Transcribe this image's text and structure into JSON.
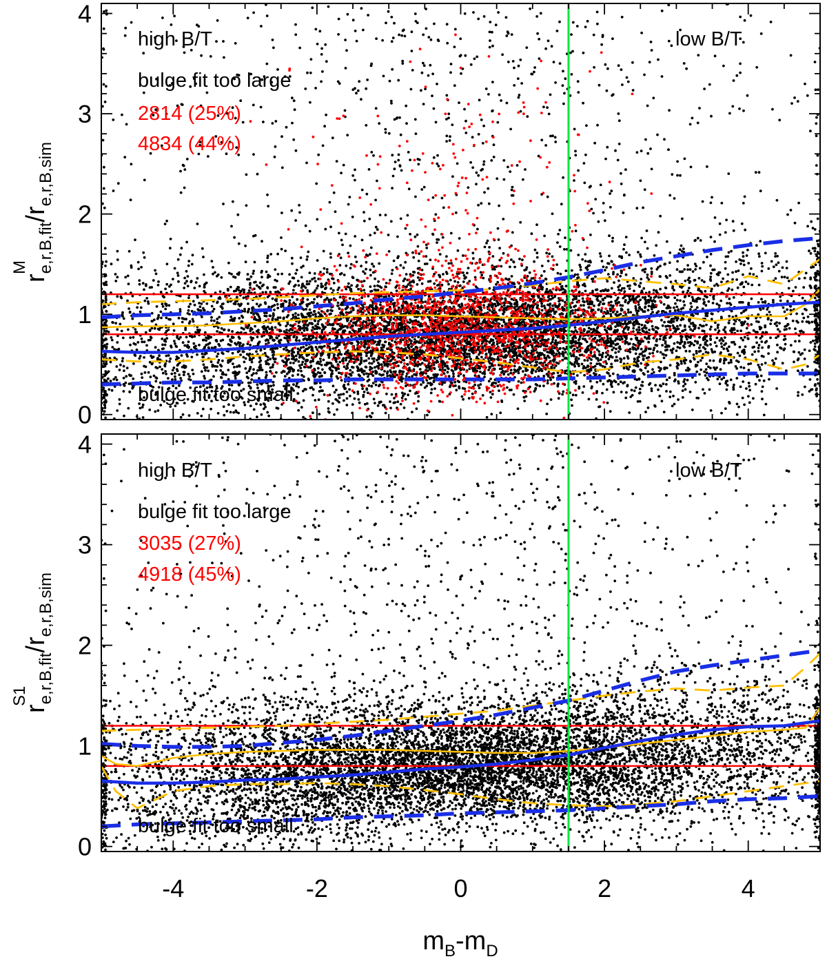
{
  "colors": {
    "points": "#000000",
    "points_flagged": "#ff0000",
    "median": "#1a2ee6",
    "percentile": "#1a2ee6",
    "secondary": "#ffbf00",
    "threshold": "#ff0000",
    "divider": "#00e640",
    "axis": "#000000"
  },
  "chart_data": [
    {
      "type": "scatter",
      "id": "top",
      "ylabel": {
        "base": "r",
        "sup": "M",
        "sub": "e,r,B,fit",
        "sep": "/",
        "base2": "r",
        "sub2": "e,r,B,sim"
      },
      "xlim": [
        -5,
        5
      ],
      "ylim": [
        -0.05,
        4.1
      ],
      "xticks": [
        -4,
        -2,
        0,
        2,
        4
      ],
      "yticks": [
        0,
        1,
        2,
        3,
        4
      ],
      "show_xtick_labels": false,
      "annotations": {
        "left_top": "high B/T",
        "right_top": "low B/T",
        "too_large": "bulge fit too large",
        "count1": "2814 (25%)",
        "count2": "4834 (44%)",
        "too_small": "bulge fit too small"
      },
      "hlines": [
        1.2,
        0.8
      ],
      "vline": 1.5,
      "scatter": {
        "n_black": 9000,
        "n_red": 1600,
        "seed": 11
      },
      "lines": {
        "blue_median": {
          "x": [
            -5,
            -4.5,
            -4,
            -3.5,
            -3,
            -2.5,
            -2,
            -1.5,
            -1,
            -0.5,
            0,
            0.5,
            1,
            1.5,
            2,
            2.5,
            3,
            3.5,
            4,
            4.5,
            5
          ],
          "y": [
            0.63,
            0.62,
            0.62,
            0.64,
            0.66,
            0.69,
            0.72,
            0.75,
            0.78,
            0.8,
            0.82,
            0.84,
            0.86,
            0.89,
            0.93,
            0.97,
            1.01,
            1.04,
            1.07,
            1.1,
            1.12
          ]
        },
        "blue_upper": {
          "x": [
            -5,
            -4.5,
            -4,
            -3.5,
            -3,
            -2.5,
            -2,
            -1.5,
            -1,
            -0.5,
            0,
            0.5,
            1,
            1.5,
            2,
            2.5,
            3,
            3.5,
            4,
            4.5,
            5
          ],
          "y": [
            0.97,
            0.99,
            1.0,
            1.01,
            1.03,
            1.05,
            1.08,
            1.11,
            1.15,
            1.18,
            1.22,
            1.26,
            1.31,
            1.37,
            1.44,
            1.52,
            1.58,
            1.64,
            1.69,
            1.73,
            1.76
          ]
        },
        "blue_lower": {
          "x": [
            -5,
            -4.5,
            -4,
            -3.5,
            -3,
            -2.5,
            -2,
            -1.5,
            -1,
            -0.5,
            0,
            0.5,
            1,
            1.5,
            2,
            2.5,
            3,
            3.5,
            4,
            4.5,
            5
          ],
          "y": [
            0.3,
            0.31,
            0.32,
            0.32,
            0.33,
            0.34,
            0.34,
            0.35,
            0.35,
            0.35,
            0.35,
            0.35,
            0.35,
            0.36,
            0.37,
            0.38,
            0.39,
            0.4,
            0.41,
            0.41,
            0.41
          ]
        },
        "yellow_median": {
          "x": [
            -5,
            -4.5,
            -4,
            -3.5,
            -3,
            -2.5,
            -2,
            -1.5,
            -1,
            -0.5,
            0,
            0.5,
            1,
            1.5,
            2,
            2.5,
            3,
            3.5,
            4,
            4.5,
            4.8,
            5
          ],
          "y": [
            0.87,
            0.88,
            0.88,
            0.89,
            0.91,
            0.93,
            0.96,
            0.98,
            0.99,
            0.99,
            0.98,
            0.97,
            0.96,
            0.95,
            0.96,
            0.98,
            0.99,
            0.93,
            0.98,
            0.98,
            1.1,
            1.25
          ]
        },
        "yellow_upper": {
          "x": [
            -5,
            -4.5,
            -4,
            -3.5,
            -3,
            -2.5,
            -2,
            -1.5,
            -1,
            -0.5,
            0,
            0.5,
            1,
            1.5,
            2,
            2.5,
            3,
            3.5,
            4,
            4.5,
            4.8,
            5
          ],
          "y": [
            1.1,
            1.12,
            1.13,
            1.14,
            1.15,
            1.17,
            1.19,
            1.21,
            1.22,
            1.23,
            1.24,
            1.25,
            1.29,
            1.33,
            1.36,
            1.33,
            1.3,
            1.26,
            1.38,
            1.3,
            1.45,
            1.55
          ]
        },
        "yellow_lower": {
          "x": [
            -5,
            -4.5,
            -4,
            -3.5,
            -3,
            -2.5,
            -2,
            -1.5,
            -1,
            -0.5,
            0,
            0.5,
            1,
            1.5,
            2,
            2.5,
            3,
            3.5,
            4,
            4.5,
            4.8,
            5
          ],
          "y": [
            0.55,
            0.53,
            0.53,
            0.55,
            0.58,
            0.6,
            0.62,
            0.63,
            0.62,
            0.6,
            0.56,
            0.52,
            0.47,
            0.42,
            0.45,
            0.52,
            0.55,
            0.6,
            0.55,
            0.45,
            0.5,
            0.6
          ]
        }
      }
    },
    {
      "type": "scatter",
      "id": "bottom",
      "ylabel": {
        "base": "r",
        "sup": "S1",
        "sub": "e,r,B,fit",
        "sep": "/",
        "base2": "r",
        "sub2": "e,r,B,sim"
      },
      "xlabel": {
        "base": "m",
        "sub": "B",
        "sep": "-",
        "base2": "m",
        "sub2": "D"
      },
      "xlim": [
        -5,
        5
      ],
      "ylim": [
        -0.05,
        4.1
      ],
      "xticks": [
        -4,
        -2,
        0,
        2,
        4
      ],
      "yticks": [
        0,
        1,
        2,
        3,
        4
      ],
      "show_xtick_labels": true,
      "annotations": {
        "left_top": "high B/T",
        "right_top": "low B/T",
        "too_large": "bulge fit too large",
        "count1": "3035 (27%)",
        "count2": "4918 (45%)",
        "too_small": "bulge fit too small"
      },
      "hlines": [
        1.2,
        0.8
      ],
      "vline": 1.5,
      "scatter": {
        "n_black": 9500,
        "n_red": 0,
        "seed": 23
      },
      "lines": {
        "blue_median": {
          "x": [
            -5,
            -4.5,
            -4,
            -3.5,
            -3,
            -2.5,
            -2,
            -1.5,
            -1,
            -0.5,
            0,
            0.5,
            1,
            1.5,
            2,
            2.5,
            3,
            3.5,
            4,
            4.5,
            5
          ],
          "y": [
            0.65,
            0.63,
            0.63,
            0.64,
            0.66,
            0.67,
            0.69,
            0.71,
            0.74,
            0.77,
            0.79,
            0.82,
            0.86,
            0.91,
            0.98,
            1.05,
            1.11,
            1.16,
            1.19,
            1.2,
            1.25
          ]
        },
        "blue_upper": {
          "x": [
            -5,
            -4.5,
            -4,
            -3.5,
            -3,
            -2.5,
            -2,
            -1.5,
            -1,
            -0.5,
            0,
            0.5,
            1,
            1.5,
            2,
            2.5,
            3,
            3.5,
            4,
            4.5,
            5
          ],
          "y": [
            1.02,
            1.0,
            0.99,
            0.99,
            1.0,
            1.03,
            1.06,
            1.1,
            1.15,
            1.2,
            1.25,
            1.31,
            1.38,
            1.45,
            1.55,
            1.65,
            1.74,
            1.8,
            1.85,
            1.9,
            1.95
          ]
        },
        "blue_lower": {
          "x": [
            -5,
            -4.5,
            -4,
            -3.5,
            -3,
            -2.5,
            -2,
            -1.5,
            -1,
            -0.5,
            0,
            0.5,
            1,
            1.5,
            2,
            2.5,
            3,
            3.5,
            4,
            4.5,
            5
          ],
          "y": [
            0.2,
            0.22,
            0.23,
            0.24,
            0.25,
            0.26,
            0.27,
            0.29,
            0.3,
            0.31,
            0.33,
            0.34,
            0.35,
            0.36,
            0.38,
            0.4,
            0.42,
            0.45,
            0.47,
            0.48,
            0.5
          ]
        },
        "yellow_median": {
          "x": [
            -5,
            -4.8,
            -4.5,
            -4,
            -3.5,
            -3,
            -2.5,
            -2,
            -1.5,
            -1,
            -0.5,
            0,
            0.5,
            1,
            1.5,
            2,
            2.5,
            3,
            3.5,
            4,
            4.5,
            4.8,
            5
          ],
          "y": [
            0.9,
            0.82,
            0.8,
            0.88,
            0.92,
            0.94,
            0.95,
            0.96,
            0.96,
            0.96,
            0.95,
            0.94,
            0.93,
            0.93,
            0.95,
            0.98,
            1.02,
            1.06,
            1.1,
            1.14,
            1.16,
            1.18,
            1.38
          ]
        },
        "yellow_upper": {
          "x": [
            -5,
            -4.5,
            -4,
            -3.5,
            -3,
            -2.5,
            -2,
            -1.5,
            -1,
            -0.5,
            0,
            0.5,
            1,
            1.5,
            2,
            2.5,
            3,
            3.5,
            4,
            4.5,
            4.8,
            5
          ],
          "y": [
            1.15,
            1.16,
            1.17,
            1.18,
            1.19,
            1.2,
            1.22,
            1.24,
            1.26,
            1.29,
            1.32,
            1.35,
            1.4,
            1.45,
            1.5,
            1.54,
            1.57,
            1.55,
            1.58,
            1.6,
            1.78,
            1.92
          ]
        },
        "yellow_lower": {
          "x": [
            -5,
            -4.8,
            -4.5,
            -4,
            -3.5,
            -3,
            -2.5,
            -2,
            -1.5,
            -1,
            -0.5,
            0,
            0.5,
            1,
            1.5,
            2,
            2.5,
            3,
            3.5,
            4,
            4.5,
            5
          ],
          "y": [
            0.8,
            0.55,
            0.38,
            0.55,
            0.6,
            0.62,
            0.62,
            0.63,
            0.62,
            0.6,
            0.56,
            0.52,
            0.47,
            0.43,
            0.41,
            0.4,
            0.42,
            0.45,
            0.5,
            0.55,
            0.6,
            0.65
          ]
        }
      }
    }
  ]
}
